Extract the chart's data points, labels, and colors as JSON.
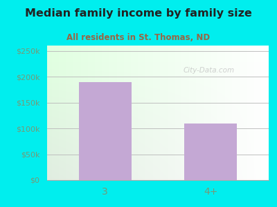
{
  "title": "Median family income by family size",
  "subtitle": "All residents in St. Thomas, ND",
  "categories": [
    "3",
    "4+"
  ],
  "values": [
    190000,
    110000
  ],
  "bar_color": "#C4A8D4",
  "bg_color": "#00EEEE",
  "title_color": "#222222",
  "subtitle_color": "#996644",
  "axis_label_color": "#779977",
  "ytick_labels": [
    "$0",
    "$50k",
    "$100k",
    "$150k",
    "$200k",
    "$250k"
  ],
  "ytick_values": [
    0,
    50000,
    100000,
    150000,
    200000,
    250000
  ],
  "ylim": [
    0,
    260000
  ],
  "watermark": "City-Data.com"
}
